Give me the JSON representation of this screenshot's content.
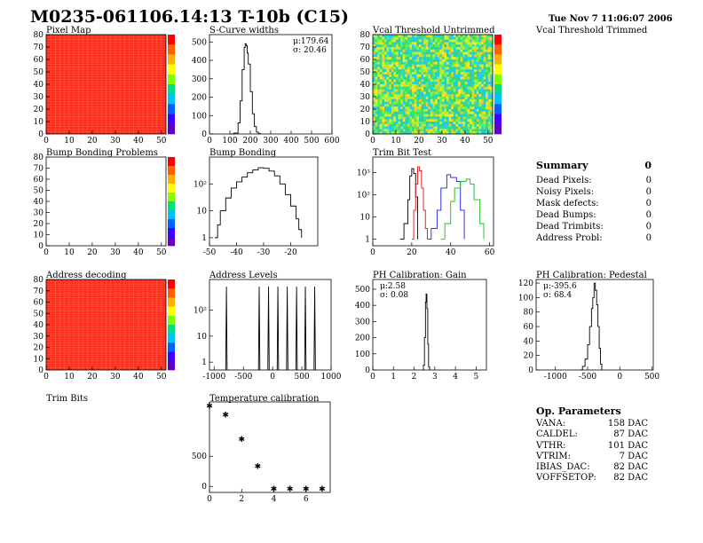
{
  "header": {
    "title": "M0235-061106.14:13 T-10b (C15)",
    "date": "Tue Nov  7 11:06:07 2006"
  },
  "panel_titles": {
    "pixel_map": "Pixel Map",
    "scurve_widths": "S-Curve widths",
    "vcal_untrimmed": "Vcal Threshold Untrimmed",
    "vcal_trimmed": "Vcal Threshold Trimmed",
    "bump_problems": "Bump Bonding Problems",
    "bump_bonding": "Bump Bonding",
    "trim_bit_test": "Trim Bit Test",
    "address_decoding": "Address decoding",
    "address_levels": "Address Levels",
    "ph_gain": "PH Calibration: Gain",
    "ph_pedestal": "PH Calibration: Pedestal",
    "trim_bits": "Trim Bits",
    "temperature": "Temperature calibration"
  },
  "summary": {
    "title": "Summary",
    "total": "0",
    "rows": [
      {
        "label": "Dead Pixels:",
        "value": "0"
      },
      {
        "label": "Noisy Pixels:",
        "value": "0"
      },
      {
        "label": "Mask defects:",
        "value": "0"
      },
      {
        "label": "Dead Bumps:",
        "value": "0"
      },
      {
        "label": "Dead Trimbits:",
        "value": "0"
      },
      {
        "label": "Address Probl:",
        "value": "0"
      }
    ]
  },
  "op_params": {
    "title": "Op. Parameters",
    "rows": [
      {
        "label": "VANA:",
        "value": "158 DAC"
      },
      {
        "label": "CALDEL:",
        "value": "87 DAC"
      },
      {
        "label": "VTHR:",
        "value": "101 DAC"
      },
      {
        "label": "VTRIM:",
        "value": "7 DAC"
      },
      {
        "label": "IBIAS_DAC:",
        "value": "82 DAC"
      },
      {
        "label": "VOFFSETOP:",
        "value": "82 DAC"
      }
    ]
  },
  "colors": {
    "map_fill": "#ff2a1a",
    "black_curve": "#000000",
    "red_curve": "#e01010",
    "blue_curve": "#1a1ae6",
    "green_curve": "#10c010"
  },
  "chart_data": [
    {
      "id": "pixel_map",
      "type": "heatmap",
      "title": "Pixel Map",
      "xticks": [
        "0",
        "10",
        "20",
        "30",
        "40",
        "50"
      ],
      "yticks": [
        "0",
        "10",
        "20",
        "30",
        "40",
        "50",
        "60",
        "70",
        "80"
      ],
      "xlim": [
        0,
        52
      ],
      "ylim": [
        0,
        80
      ],
      "fill": "uniform red"
    },
    {
      "id": "scurve_widths",
      "type": "line",
      "title": "S-Curve widths",
      "xticks": [
        "0",
        "100",
        "200",
        "300",
        "400",
        "500",
        "600"
      ],
      "yticks": [
        "0",
        "100",
        "200",
        "300",
        "400",
        "500"
      ],
      "xlim": [
        0,
        600
      ],
      "ylim": [
        0,
        540
      ],
      "x": [
        100,
        120,
        140,
        150,
        160,
        170,
        175,
        180,
        185,
        190,
        200,
        210,
        220,
        230,
        240,
        250
      ],
      "y": [
        0,
        5,
        60,
        180,
        350,
        470,
        490,
        480,
        440,
        380,
        230,
        110,
        40,
        10,
        2,
        0
      ],
      "stats": [
        "μ:179.64",
        "σ: 20.46"
      ]
    },
    {
      "id": "vcal_untrimmed",
      "type": "heatmap",
      "title": "Vcal Threshold Untrimmed",
      "xticks": [
        "0",
        "10",
        "20",
        "30",
        "40",
        "50"
      ],
      "yticks": [
        "0",
        "10",
        "20",
        "30",
        "40",
        "50",
        "60",
        "70",
        "80"
      ],
      "xlim": [
        0,
        52
      ],
      "ylim": [
        0,
        80
      ],
      "fill": "noisy green/cyan/yellow"
    },
    {
      "id": "bump_problems",
      "type": "heatmap",
      "title": "Bump Bonding Problems",
      "xticks": [
        "0",
        "10",
        "20",
        "30",
        "40",
        "50"
      ],
      "yticks": [
        "0",
        "10",
        "20",
        "30",
        "40",
        "50",
        "60",
        "70",
        "80"
      ],
      "xlim": [
        0,
        52
      ],
      "ylim": [
        0,
        80
      ],
      "fill": "empty"
    },
    {
      "id": "bump_bonding",
      "type": "line",
      "title": "Bump Bonding",
      "log_y": true,
      "xticks": [
        "-50",
        "-40",
        "-30",
        "-20"
      ],
      "yticks": [
        "1",
        "10",
        "10²"
      ],
      "xlim": [
        -50,
        -10
      ],
      "ylim": [
        0.5,
        1000
      ],
      "x": [
        -48,
        -47,
        -46,
        -44,
        -42,
        -40,
        -38,
        -36,
        -34,
        -32,
        -30,
        -28,
        -26,
        -24,
        -22,
        -20,
        -18,
        -17,
        -16
      ],
      "y": [
        1,
        3,
        10,
        30,
        70,
        120,
        180,
        260,
        330,
        400,
        380,
        300,
        200,
        100,
        40,
        15,
        5,
        2,
        1
      ]
    },
    {
      "id": "trim_bit_test",
      "type": "line",
      "title": "Trim Bit Test",
      "log_y": true,
      "xticks": [
        "0",
        "20",
        "40",
        "60"
      ],
      "yticks": [
        "1",
        "10",
        "10²",
        "10³"
      ],
      "xlim": [
        0,
        62
      ],
      "ylim": [
        0.5,
        5000
      ],
      "series": [
        {
          "color": "#000000",
          "x": [
            14,
            16,
            18,
            19,
            20,
            21,
            22,
            23
          ],
          "y": [
            1,
            5,
            60,
            700,
            1500,
            900,
            80,
            1
          ]
        },
        {
          "color": "#e01010",
          "x": [
            20,
            21,
            22,
            23,
            24,
            25,
            26,
            27,
            28
          ],
          "y": [
            1,
            20,
            300,
            1800,
            1200,
            200,
            20,
            3,
            1
          ]
        },
        {
          "color": "#1a1ae6",
          "x": [
            28,
            30,
            33,
            35,
            38,
            40,
            43,
            45,
            47
          ],
          "y": [
            1,
            3,
            20,
            200,
            800,
            600,
            400,
            20,
            1
          ]
        },
        {
          "color": "#10c010",
          "x": [
            35,
            37,
            40,
            42,
            45,
            48,
            50,
            52,
            55,
            57
          ],
          "y": [
            1,
            5,
            50,
            200,
            400,
            500,
            300,
            60,
            5,
            1
          ]
        }
      ]
    },
    {
      "id": "address_decoding",
      "type": "heatmap",
      "title": "Address decoding",
      "xticks": [
        "0",
        "10",
        "20",
        "30",
        "40",
        "50"
      ],
      "yticks": [
        "0",
        "10",
        "20",
        "30",
        "40",
        "50",
        "60",
        "70",
        "80"
      ],
      "xlim": [
        0,
        52
      ],
      "ylim": [
        0,
        80
      ],
      "fill": "uniform red"
    },
    {
      "id": "address_levels",
      "type": "line",
      "title": "Address Levels",
      "log_y": true,
      "xticks": [
        "-1000",
        "-500",
        "0",
        "500",
        "1000"
      ],
      "yticks": [
        "1",
        "10",
        "10²"
      ],
      "xlim": [
        -1080,
        1000
      ],
      "ylim": [
        0.5,
        1500
      ],
      "peaks": [
        -790,
        -230,
        -70,
        90,
        250,
        410,
        560,
        720
      ],
      "peak_height": 800
    },
    {
      "id": "ph_gain",
      "type": "line",
      "title": "PH Calibration: Gain",
      "xticks": [
        "0",
        "1",
        "2",
        "3",
        "4",
        "5"
      ],
      "yticks": [
        "0",
        "100",
        "200",
        "300",
        "400",
        "500"
      ],
      "xlim": [
        0,
        5.5
      ],
      "ylim": [
        0,
        560
      ],
      "x": [
        2.4,
        2.45,
        2.5,
        2.55,
        2.58,
        2.62,
        2.66,
        2.7,
        2.75
      ],
      "y": [
        0,
        30,
        200,
        420,
        470,
        380,
        160,
        20,
        0
      ],
      "stats": [
        "μ:2.58",
        "σ: 0.08"
      ]
    },
    {
      "id": "ph_pedestal",
      "type": "line",
      "title": "PH Calibration: Pedestal",
      "xticks": [
        "-1000",
        "-500",
        "0",
        "500"
      ],
      "yticks": [
        "0",
        "20",
        "40",
        "60",
        "80",
        "100",
        "120"
      ],
      "xlim": [
        -1300,
        520
      ],
      "ylim": [
        0,
        125
      ],
      "x": [
        -620,
        -580,
        -540,
        -500,
        -470,
        -440,
        -420,
        -400,
        -380,
        -360,
        -340,
        -320,
        -300,
        -280
      ],
      "y": [
        0,
        5,
        15,
        35,
        60,
        85,
        100,
        120,
        110,
        90,
        60,
        30,
        8,
        0
      ],
      "stats": [
        "μ:-395.6",
        "σ: 68.4"
      ]
    },
    {
      "id": "temperature",
      "type": "scatter",
      "title": "Temperature calibration",
      "xticks": [
        "0",
        "2",
        "4",
        "6"
      ],
      "yticks": [
        "0",
        "500"
      ],
      "xlim": [
        0,
        7.5
      ],
      "ylim": [
        -100,
        1400
      ],
      "x": [
        0,
        1,
        2,
        3,
        4,
        5,
        6,
        7
      ],
      "y": [
        1350,
        1200,
        800,
        350,
        -30,
        -30,
        -30,
        -30
      ]
    }
  ]
}
